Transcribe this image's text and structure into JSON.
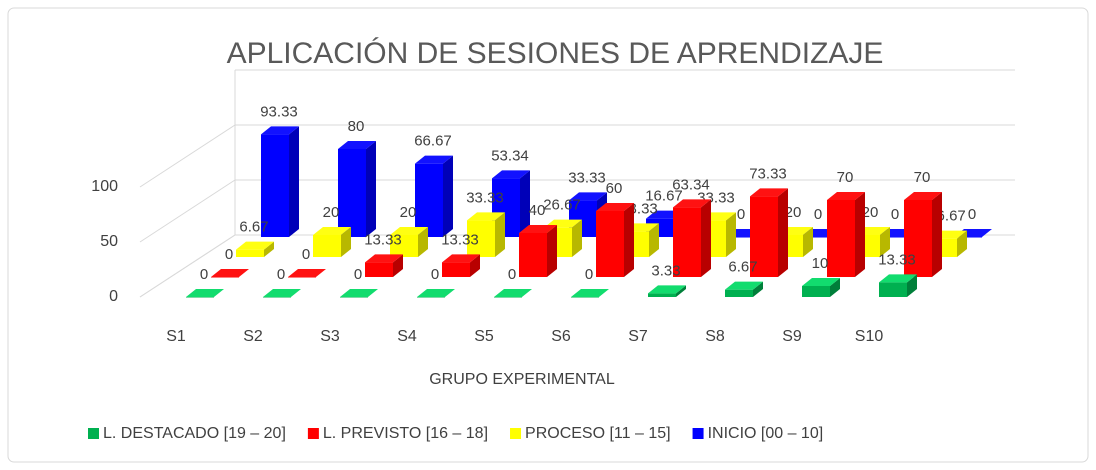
{
  "chart_data": {
    "type": "bar3d",
    "title": "APLICACIÓN DE SESIONES DE APRENDIZAJE",
    "x_label": "GRUPO EXPERIMENTAL",
    "categories": [
      "S1",
      "S2",
      "S3",
      "S4",
      "S5",
      "S6",
      "S7",
      "S8",
      "S9",
      "S10"
    ],
    "series": [
      {
        "name": "L. DESTACADO [19 – 20]",
        "color": "#00b050",
        "values": [
          0,
          0,
          0,
          0,
          0,
          0,
          3.33,
          6.67,
          10,
          13.33
        ]
      },
      {
        "name": "L. PREVISTO [16 – 18]",
        "color": "#ff0000",
        "values": [
          0,
          0,
          13.33,
          13.33,
          40,
          60,
          63.34,
          73.33,
          70,
          70
        ]
      },
      {
        "name": "PROCESO [11 – 15]",
        "color": "#ffff00",
        "values": [
          6.67,
          20,
          20,
          33.33,
          26.67,
          23.33,
          33.33,
          20,
          20,
          16.67
        ]
      },
      {
        "name": "INICIO [00 – 10]",
        "color": "#0000ff",
        "values": [
          93.33,
          80,
          66.67,
          53.34,
          33.33,
          16.67,
          0,
          0,
          0,
          0
        ]
      }
    ],
    "ylim": [
      0,
      150
    ],
    "yticks": [
      0,
      50,
      100
    ],
    "grid": true,
    "legend": "bottom"
  }
}
